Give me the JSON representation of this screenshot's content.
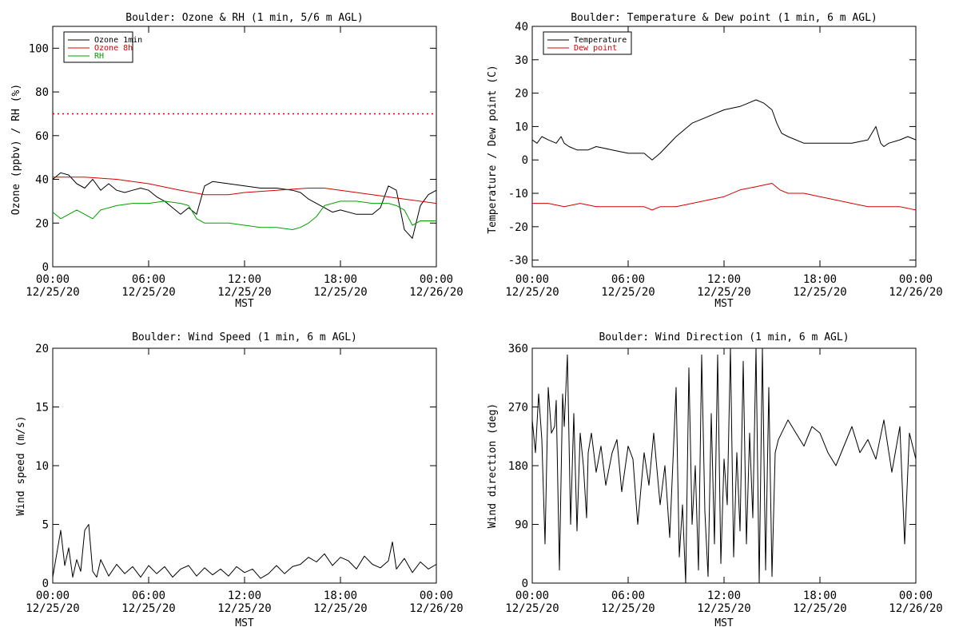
{
  "colors": {
    "ozone_1min": "#000000",
    "ozone_8h": "#d40000",
    "rh": "#00a000",
    "temperature": "#000000",
    "dew_point": "#d40000",
    "wind": "#000000"
  },
  "chart_data": [
    {
      "type": "line",
      "title": "Boulder: Ozone & RH (1 min, 5/6 m AGL)",
      "xlabel": "MST",
      "ylabel": "Ozone (ppbv) / RH (%)",
      "xlim": [
        0,
        24
      ],
      "ylim": [
        0,
        110
      ],
      "xticks": [
        {
          "hour": 0,
          "time": "00:00",
          "date": "12/25/20"
        },
        {
          "hour": 6,
          "time": "06:00",
          "date": "12/25/20"
        },
        {
          "hour": 12,
          "time": "12:00",
          "date": "12/25/20"
        },
        {
          "hour": 18,
          "time": "18:00",
          "date": "12/25/20"
        },
        {
          "hour": 24,
          "time": "00:00",
          "date": "12/26/20"
        }
      ],
      "yticks": [
        0,
        20,
        40,
        60,
        80,
        100
      ],
      "legend_position": "top-left",
      "reference_line": {
        "y": 70,
        "style": "dotted",
        "color": "#d40000"
      },
      "series": [
        {
          "name": "Ozone 1min",
          "color": "#000000",
          "x": [
            0,
            0.5,
            1,
            1.5,
            2,
            2.5,
            3,
            3.5,
            4,
            4.5,
            5,
            5.5,
            6,
            6.5,
            7,
            7.5,
            8,
            8.5,
            9,
            9.5,
            10,
            11,
            12,
            13,
            14,
            15,
            15.5,
            16,
            17,
            17.5,
            18,
            19,
            20,
            20.5,
            21,
            21.5,
            22,
            22.5,
            23,
            23.5,
            24
          ],
          "y": [
            40,
            43,
            42,
            38,
            36,
            40,
            35,
            38,
            35,
            34,
            35,
            36,
            35,
            32,
            30,
            27,
            24,
            27,
            24,
            37,
            39,
            38,
            37,
            36,
            36,
            35,
            34,
            31,
            27,
            25,
            26,
            24,
            24,
            27,
            37,
            35,
            17,
            13,
            28,
            33,
            35
          ]
        },
        {
          "name": "Ozone 8h",
          "color": "#d40000",
          "x": [
            0,
            2,
            4,
            6,
            8,
            9.5,
            11,
            12,
            14,
            16,
            17,
            18,
            20,
            22,
            24
          ],
          "y": [
            41,
            41,
            40,
            38,
            35,
            33,
            33,
            34,
            35,
            36,
            36,
            35,
            33,
            31,
            29
          ]
        },
        {
          "name": "RH",
          "color": "#00a000",
          "x": [
            0,
            0.5,
            1,
            1.5,
            2,
            2.5,
            3,
            4,
            5,
            6,
            7,
            8,
            8.5,
            9,
            9.5,
            10,
            11,
            12,
            13,
            14,
            15,
            15.5,
            16,
            16.5,
            17,
            18,
            19,
            20,
            21,
            21.5,
            22,
            22.5,
            23,
            24
          ],
          "y": [
            25,
            22,
            24,
            26,
            24,
            22,
            26,
            28,
            29,
            29,
            30,
            29,
            28,
            22,
            20,
            20,
            20,
            19,
            18,
            18,
            17,
            18,
            20,
            23,
            28,
            30,
            30,
            29,
            29,
            28,
            26,
            19,
            21,
            21
          ]
        }
      ]
    },
    {
      "type": "line",
      "title": "Boulder: Temperature & Dew point (1 min, 6 m AGL)",
      "xlabel": "MST",
      "ylabel": "Temperature / Dew point (C)",
      "xlim": [
        0,
        24
      ],
      "ylim": [
        -32,
        40
      ],
      "xticks": [
        {
          "hour": 0,
          "time": "00:00",
          "date": "12/25/20"
        },
        {
          "hour": 6,
          "time": "06:00",
          "date": "12/25/20"
        },
        {
          "hour": 12,
          "time": "12:00",
          "date": "12/25/20"
        },
        {
          "hour": 18,
          "time": "18:00",
          "date": "12/25/20"
        },
        {
          "hour": 24,
          "time": "00:00",
          "date": "12/26/20"
        }
      ],
      "yticks": [
        -30,
        -20,
        -10,
        0,
        10,
        20,
        30,
        40
      ],
      "legend_position": "top-left",
      "series": [
        {
          "name": "Temperature",
          "color": "#000000",
          "x": [
            0,
            0.3,
            0.6,
            1,
            1.5,
            1.8,
            2,
            2.3,
            2.8,
            3.5,
            4,
            5,
            6,
            7,
            7.5,
            8,
            9,
            10,
            11,
            12,
            13,
            13.5,
            14,
            14.5,
            15,
            15.3,
            15.6,
            16,
            17,
            18,
            19,
            20,
            21,
            21.5,
            21.8,
            22,
            22.3,
            23,
            23.5,
            24
          ],
          "y": [
            6,
            5,
            7,
            6,
            5,
            7,
            5,
            4,
            3,
            3,
            4,
            3,
            2,
            2,
            0,
            2,
            7,
            11,
            13,
            15,
            16,
            17,
            18,
            17,
            15,
            11,
            8,
            7,
            5,
            5,
            5,
            5,
            6,
            10,
            5,
            4,
            5,
            6,
            7,
            6
          ]
        },
        {
          "name": "Dew point",
          "color": "#d40000",
          "x": [
            0,
            1,
            2,
            3,
            4,
            5,
            6,
            7,
            7.5,
            8,
            9,
            10,
            11,
            12,
            13,
            14,
            15,
            15.5,
            16,
            17,
            18,
            19,
            20,
            21,
            22,
            23,
            24
          ],
          "y": [
            -13,
            -13,
            -14,
            -13,
            -14,
            -14,
            -14,
            -14,
            -15,
            -14,
            -14,
            -13,
            -12,
            -11,
            -9,
            -8,
            -7,
            -9,
            -10,
            -10,
            -11,
            -12,
            -13,
            -14,
            -14,
            -14,
            -15
          ]
        }
      ]
    },
    {
      "type": "line",
      "title": "Boulder: Wind Speed (1 min, 6 m AGL)",
      "xlabel": "MST",
      "ylabel": "Wind speed (m/s)",
      "xlim": [
        0,
        24
      ],
      "ylim": [
        0,
        20
      ],
      "xticks": [
        {
          "hour": 0,
          "time": "00:00",
          "date": "12/25/20"
        },
        {
          "hour": 6,
          "time": "06:00",
          "date": "12/25/20"
        },
        {
          "hour": 12,
          "time": "12:00",
          "date": "12/25/20"
        },
        {
          "hour": 18,
          "time": "18:00",
          "date": "12/25/20"
        },
        {
          "hour": 24,
          "time": "00:00",
          "date": "12/26/20"
        }
      ],
      "yticks": [
        0,
        5,
        10,
        15,
        20
      ],
      "series": [
        {
          "color": "#000000",
          "x": [
            0,
            0.25,
            0.5,
            0.75,
            1,
            1.25,
            1.5,
            1.75,
            2,
            2.25,
            2.5,
            2.75,
            3,
            3.5,
            4,
            4.5,
            5,
            5.5,
            6,
            6.5,
            7,
            7.5,
            8,
            8.5,
            9,
            9.5,
            10,
            10.5,
            11,
            11.5,
            12,
            12.5,
            13,
            13.5,
            14,
            14.5,
            15,
            15.5,
            16,
            16.5,
            17,
            17.5,
            18,
            18.5,
            19,
            19.5,
            20,
            20.5,
            21,
            21.25,
            21.5,
            22,
            22.5,
            23,
            23.5,
            24
          ],
          "y": [
            0.5,
            2.5,
            4.5,
            1.5,
            3,
            0.5,
            2,
            1,
            4.5,
            5,
            1,
            0.5,
            2,
            0.6,
            1.6,
            0.8,
            1.4,
            0.5,
            1.5,
            0.8,
            1.4,
            0.5,
            1.2,
            1.5,
            0.6,
            1.3,
            0.7,
            1.2,
            0.6,
            1.4,
            0.9,
            1.2,
            0.4,
            0.8,
            1.5,
            0.8,
            1.4,
            1.6,
            2.2,
            1.8,
            2.5,
            1.5,
            2.2,
            1.9,
            1.2,
            2.3,
            1.6,
            1.3,
            1.9,
            3.5,
            1.2,
            2.1,
            0.9,
            1.8,
            1.2,
            1.6
          ]
        }
      ]
    },
    {
      "type": "line",
      "title": "Boulder: Wind Direction (1 min, 6 m AGL)",
      "xlabel": "MST",
      "ylabel": "Wind direction (deg)",
      "xlim": [
        0,
        24
      ],
      "ylim": [
        0,
        360
      ],
      "xticks": [
        {
          "hour": 0,
          "time": "00:00",
          "date": "12/25/20"
        },
        {
          "hour": 6,
          "time": "06:00",
          "date": "12/25/20"
        },
        {
          "hour": 12,
          "time": "12:00",
          "date": "12/25/20"
        },
        {
          "hour": 18,
          "time": "18:00",
          "date": "12/25/20"
        },
        {
          "hour": 24,
          "time": "00:00",
          "date": "12/26/20"
        }
      ],
      "yticks": [
        0,
        90,
        180,
        270,
        360
      ],
      "series": [
        {
          "color": "#000000",
          "x": [
            0,
            0.2,
            0.4,
            0.6,
            0.8,
            1,
            1.2,
            1.4,
            1.5,
            1.7,
            1.9,
            2,
            2.2,
            2.4,
            2.6,
            2.8,
            3,
            3.2,
            3.4,
            3.5,
            3.7,
            4,
            4.3,
            4.6,
            5,
            5.3,
            5.6,
            6,
            6.3,
            6.6,
            7,
            7.3,
            7.6,
            8,
            8.3,
            8.6,
            9,
            9.2,
            9.4,
            9.6,
            9.8,
            10,
            10.2,
            10.4,
            10.6,
            10.8,
            11,
            11.2,
            11.4,
            11.6,
            11.8,
            12,
            12.2,
            12.4,
            12.6,
            12.8,
            13,
            13.2,
            13.4,
            13.6,
            13.8,
            14,
            14.2,
            14.4,
            14.6,
            14.8,
            15,
            15.2,
            15.4,
            15.6,
            16,
            16.5,
            17,
            17.5,
            18,
            18.5,
            19,
            19.5,
            20,
            20.5,
            21,
            21.5,
            22,
            22.5,
            23,
            23.3,
            23.6,
            24
          ],
          "y": [
            250,
            200,
            290,
            220,
            60,
            300,
            230,
            240,
            280,
            20,
            290,
            240,
            350,
            90,
            260,
            80,
            230,
            180,
            100,
            200,
            230,
            170,
            210,
            150,
            200,
            220,
            140,
            210,
            190,
            90,
            200,
            150,
            230,
            120,
            180,
            70,
            300,
            40,
            120,
            0,
            330,
            90,
            180,
            20,
            350,
            110,
            10,
            260,
            60,
            350,
            30,
            190,
            120,
            360,
            40,
            200,
            80,
            340,
            60,
            230,
            100,
            360,
            0,
            360,
            20,
            300,
            10,
            200,
            220,
            230,
            250,
            230,
            210,
            240,
            230,
            200,
            180,
            210,
            240,
            200,
            220,
            190,
            250,
            170,
            240,
            60,
            230,
            190
          ]
        }
      ]
    }
  ]
}
